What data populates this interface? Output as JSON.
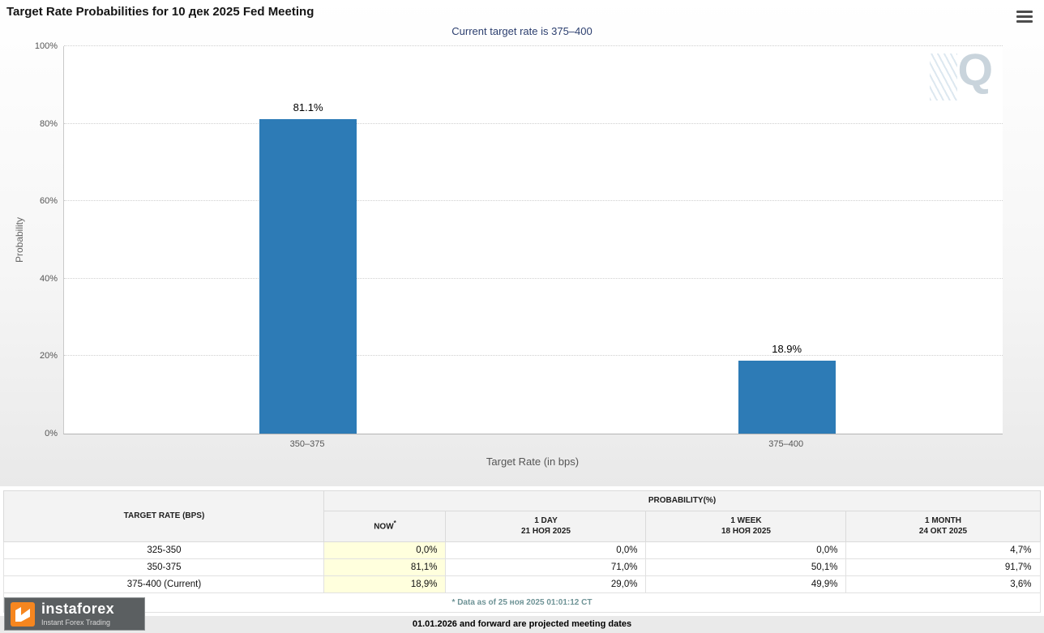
{
  "header": {
    "title": "Target Rate Probabilities for 10 дек 2025 Fed Meeting"
  },
  "chart_data": {
    "type": "bar",
    "title": "Target Rate Probabilities for 10 дек 2025 Fed Meeting",
    "subtitle": "Current target rate is 375–400",
    "categories": [
      "350–375",
      "375–400"
    ],
    "values": [
      81.1,
      18.9
    ],
    "data_labels": [
      "81.1%",
      "18.9%"
    ],
    "xlabel": "Target Rate (in bps)",
    "ylabel": "Probability",
    "ylim": [
      0,
      100
    ],
    "yticks": [
      0,
      20,
      40,
      60,
      80,
      100
    ],
    "ytick_labels": [
      "0%",
      "20%",
      "40%",
      "60%",
      "80%",
      "100%"
    ],
    "grid": "dotted-horizontal",
    "legend": "none",
    "bar_color": "#2d7bb6",
    "watermark": "Q"
  },
  "table": {
    "corner_header": "TARGET RATE (BPS)",
    "group_header": "PROBABILITY(%)",
    "columns": [
      {
        "line1": "NOW",
        "sup": "*",
        "line2": ""
      },
      {
        "line1": "1 DAY",
        "line2": "21 НОЯ 2025"
      },
      {
        "line1": "1 WEEK",
        "line2": "18 НОЯ 2025"
      },
      {
        "line1": "1 MONTH",
        "line2": "24 ОКТ 2025"
      }
    ],
    "rows": [
      {
        "label": "325-350",
        "values": [
          "0,0%",
          "0,0%",
          "0,0%",
          "4,7%"
        ]
      },
      {
        "label": "350-375",
        "values": [
          "81,1%",
          "71,0%",
          "50,1%",
          "91,7%"
        ]
      },
      {
        "label": "375-400 (Current)",
        "values": [
          "18,9%",
          "29,0%",
          "49,9%",
          "3,6%"
        ]
      }
    ],
    "footnote": "* Data as of 25 ноя 2025 01:01:12 CT",
    "highlight_color": "#ffffdd"
  },
  "footer": {
    "projected_note": "01.01.2026 and forward are projected meeting dates"
  },
  "logo": {
    "brand": "instaforex",
    "tagline": "Instant Forex Trading",
    "accent_color": "#f6861f"
  }
}
